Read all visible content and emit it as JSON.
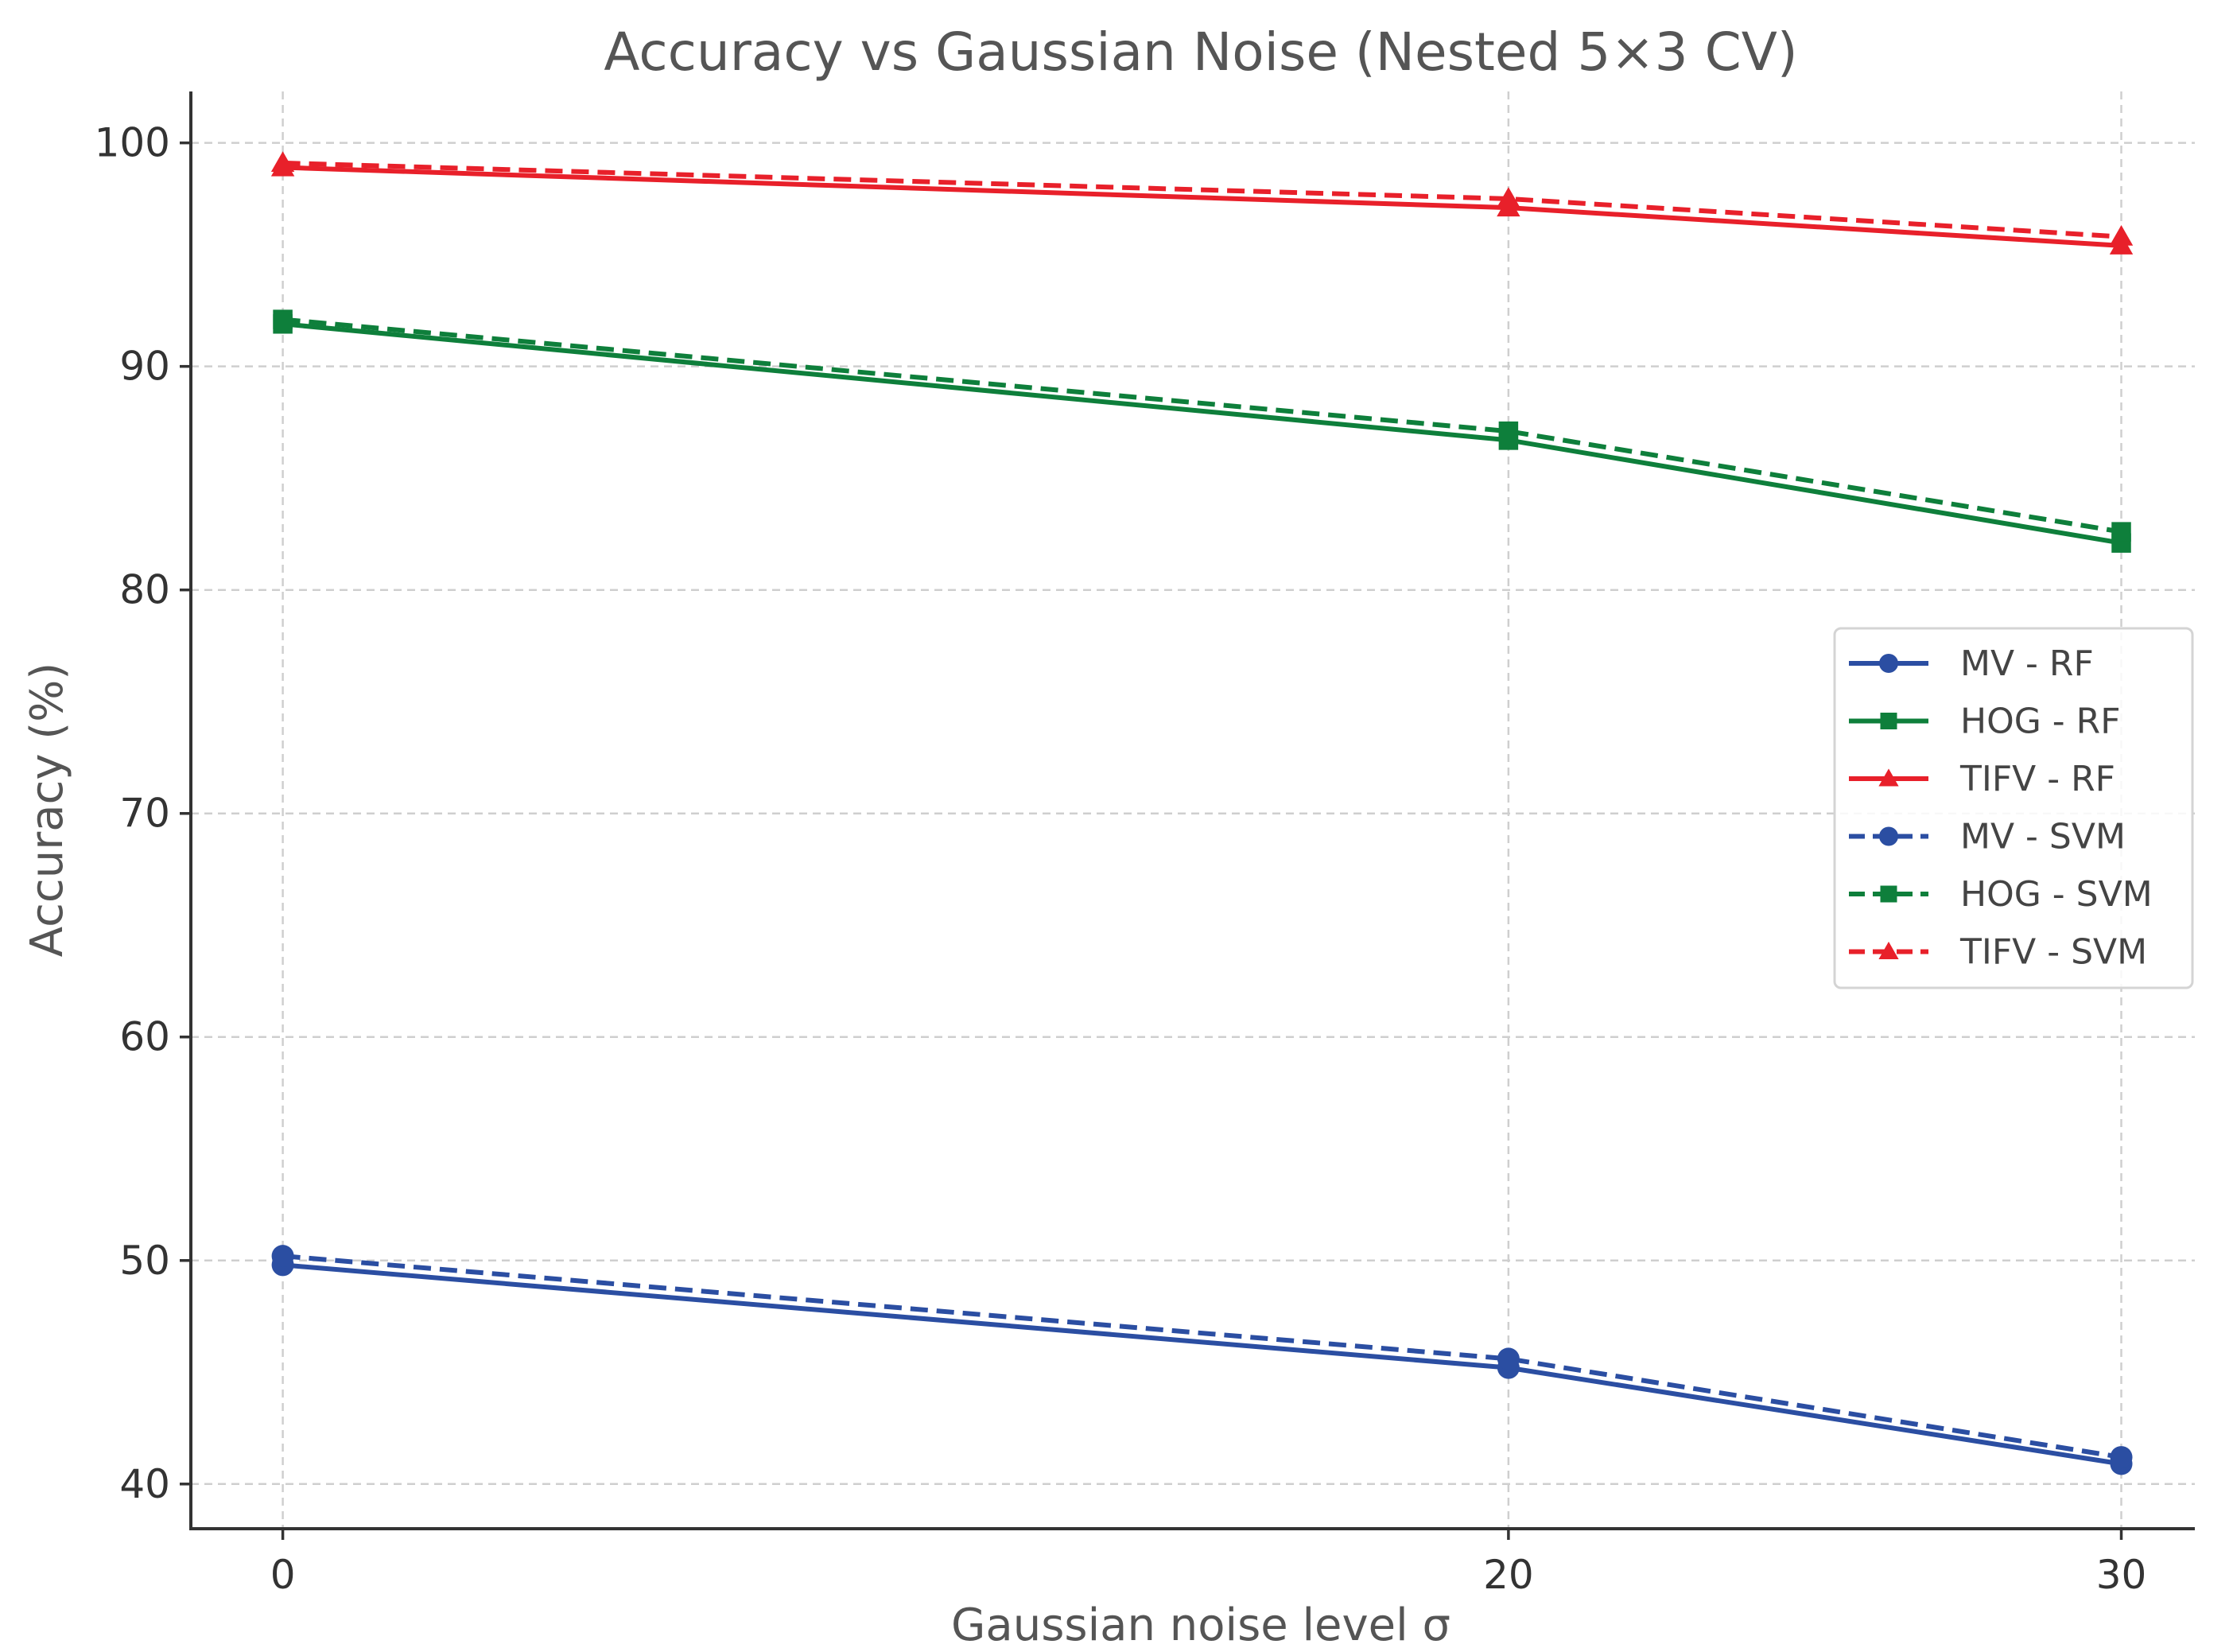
{
  "chart_data": {
    "type": "line",
    "title": "Accuracy vs Gaussian Noise (Nested 5×3 CV)",
    "xlabel": "Gaussian noise level σ",
    "ylabel": "Accuracy (%)",
    "x": [
      0,
      20,
      30
    ],
    "x_ticks": [
      0,
      20,
      30
    ],
    "y_ticks": [
      40,
      50,
      60,
      70,
      80,
      90,
      100
    ],
    "xlim": [
      -1.5,
      31.2
    ],
    "ylim": [
      38,
      102.3
    ],
    "grid": true,
    "legend_position": "center-right",
    "series": [
      {
        "name": "MV - RF",
        "values": [
          49.8,
          45.2,
          40.9
        ],
        "color": "#2b4ea2",
        "linestyle": "solid",
        "marker": "circle"
      },
      {
        "name": "HOG - RF",
        "values": [
          91.9,
          86.7,
          82.1
        ],
        "color": "#0e7f3b",
        "linestyle": "solid",
        "marker": "square"
      },
      {
        "name": "TIFV - RF",
        "values": [
          98.9,
          97.1,
          95.4
        ],
        "color": "#e8202a",
        "linestyle": "solid",
        "marker": "triangle"
      },
      {
        "name": "MV - SVM",
        "values": [
          50.2,
          45.6,
          41.2
        ],
        "color": "#2b4ea2",
        "linestyle": "dashed",
        "marker": "circle"
      },
      {
        "name": "HOG - SVM",
        "values": [
          92.1,
          87.1,
          82.6
        ],
        "color": "#0e7f3b",
        "linestyle": "dashed",
        "marker": "square"
      },
      {
        "name": "TIFV - SVM",
        "values": [
          99.1,
          97.5,
          95.8
        ],
        "color": "#e8202a",
        "linestyle": "dashed",
        "marker": "triangle"
      }
    ]
  }
}
